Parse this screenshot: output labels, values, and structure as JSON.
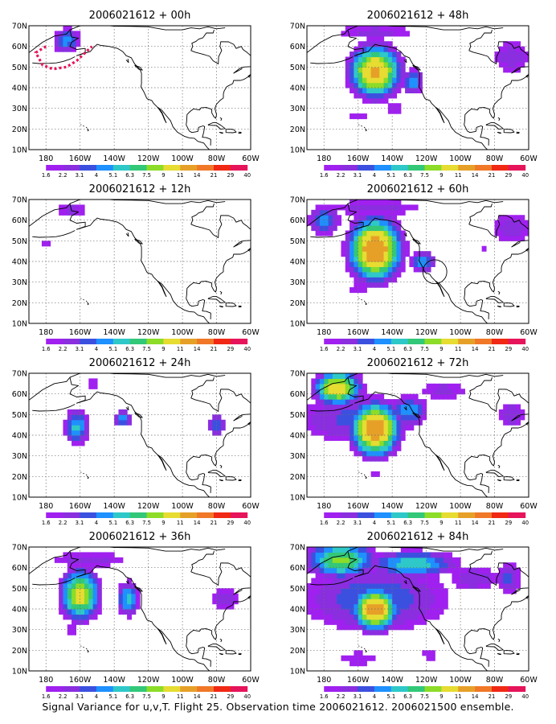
{
  "figure": {
    "caption": "Signal Variance for u,v,T. Flight 25. Observation time 2006021612. 2006021500 ensemble."
  },
  "colors": {
    "levels": [
      "#a020f0",
      "#8a2ee0",
      "#3c50e0",
      "#1e90ff",
      "#2ec8c8",
      "#32c878",
      "#8cdc28",
      "#e6dc32",
      "#e6a028",
      "#f07828",
      "#f02814",
      "#e6145a"
    ],
    "land_outline": "#000000",
    "grid": "#6e6e6e",
    "track": "#e6145a"
  },
  "chart_data": [
    {
      "type": "heatmap",
      "title": "2006021612 + 00h",
      "lead_hours": 0,
      "x_ticks": [
        "180",
        "160W",
        "140W",
        "120W",
        "100W",
        "80W",
        "60W"
      ],
      "y_ticks": [
        "10N",
        "20N",
        "30N",
        "40N",
        "50N",
        "60N",
        "70N"
      ],
      "xlim": [
        -190,
        -60
      ],
      "ylim": [
        10,
        70
      ],
      "colorbar": {
        "levels": [
          "1.6",
          "2.2",
          "3.1",
          "4",
          "5.1",
          "6.3",
          "7.5",
          "9",
          "11",
          "14",
          "21",
          "29",
          "40"
        ]
      },
      "features": [
        {
          "lon": -168,
          "lat": 63,
          "peak": 4.5,
          "rlon": 8,
          "rlat": 6
        }
      ],
      "flight_track": [
        [
          -180,
          60
        ],
        [
          -186,
          57
        ],
        [
          -182,
          51
        ],
        [
          -176,
          49
        ],
        [
          -168,
          50
        ],
        [
          -162,
          53
        ],
        [
          -157,
          57
        ],
        [
          -153,
          60
        ]
      ]
    },
    {
      "type": "heatmap",
      "title": "2006021612 + 48h",
      "lead_hours": 48,
      "x_ticks": [
        "180",
        "160W",
        "140W",
        "120W",
        "100W",
        "80W",
        "60W"
      ],
      "y_ticks": [
        "10N",
        "20N",
        "30N",
        "40N",
        "50N",
        "60N",
        "70N"
      ],
      "xlim": [
        -190,
        -60
      ],
      "ylim": [
        10,
        70
      ],
      "colorbar": {
        "levels": [
          "1.6",
          "2.2",
          "3.1",
          "4",
          "5.1",
          "6.3",
          "7.5",
          "9",
          "11",
          "14",
          "21",
          "29",
          "40"
        ]
      },
      "features": [
        {
          "lon": -150,
          "lat": 48,
          "peak": 12,
          "rlon": 13,
          "rlat": 11
        },
        {
          "lon": -128,
          "lat": 43,
          "peak": 5,
          "rlon": 6,
          "rlat": 6
        },
        {
          "lon": -150,
          "lat": 67,
          "peak": 2.5,
          "rlon": 30,
          "rlat": 5
        },
        {
          "lon": -70,
          "lat": 55,
          "peak": 2.8,
          "rlon": 14,
          "rlat": 9
        },
        {
          "lon": -160,
          "lat": 26,
          "peak": 1.9,
          "rlon": 10,
          "rlat": 4
        },
        {
          "lon": -138,
          "lat": 30,
          "peak": 2.0,
          "rlon": 8,
          "rlat": 6
        }
      ]
    },
    {
      "type": "heatmap",
      "title": "2006021612 + 12h",
      "lead_hours": 12,
      "x_ticks": [
        "180",
        "160W",
        "140W",
        "120W",
        "100W",
        "80W",
        "60W"
      ],
      "y_ticks": [
        "10N",
        "20N",
        "30N",
        "40N",
        "50N",
        "60N",
        "70N"
      ],
      "xlim": [
        -190,
        -60
      ],
      "ylim": [
        10,
        70
      ],
      "colorbar": {
        "levels": [
          "1.6",
          "2.2",
          "3.1",
          "4",
          "5.1",
          "6.3",
          "7.5",
          "9",
          "11",
          "14",
          "21",
          "29",
          "40"
        ]
      },
      "features": [
        {
          "lon": -165,
          "lat": 65,
          "peak": 2.5,
          "rlon": 14,
          "rlat": 5
        },
        {
          "lon": -180,
          "lat": 49,
          "peak": 2.3,
          "rlon": 5,
          "rlat": 4
        },
        {
          "lon": -135,
          "lat": 50,
          "peak": 2.0,
          "rlon": 3,
          "rlat": 2
        },
        {
          "lon": -160,
          "lat": 35,
          "peak": 2.0,
          "rlon": 3,
          "rlat": 3
        }
      ]
    },
    {
      "type": "heatmap",
      "title": "2006021612 + 60h",
      "lead_hours": 60,
      "x_ticks": [
        "180",
        "160W",
        "140W",
        "120W",
        "100W",
        "80W",
        "60W"
      ],
      "y_ticks": [
        "10N",
        "20N",
        "30N",
        "40N",
        "50N",
        "60N",
        "70N"
      ],
      "xlim": [
        -190,
        -60
      ],
      "ylim": [
        10,
        70
      ],
      "colorbar": {
        "levels": [
          "1.6",
          "2.2",
          "3.1",
          "4",
          "5.1",
          "6.3",
          "7.5",
          "9",
          "11",
          "14",
          "21",
          "29",
          "40"
        ]
      },
      "features": [
        {
          "lon": -150,
          "lat": 46,
          "peak": 14,
          "rlon": 13,
          "rlat": 13
        },
        {
          "lon": -180,
          "lat": 60,
          "peak": 4.5,
          "rlon": 10,
          "rlat": 7
        },
        {
          "lon": -122,
          "lat": 40,
          "peak": 5,
          "rlon": 7,
          "rlat": 5
        },
        {
          "lon": -150,
          "lat": 66,
          "peak": 2.6,
          "rlon": 35,
          "rlat": 5
        },
        {
          "lon": -70,
          "lat": 56,
          "peak": 2.8,
          "rlon": 14,
          "rlat": 9
        },
        {
          "lon": -160,
          "lat": 27,
          "peak": 2.0,
          "rlon": 10,
          "rlat": 4
        },
        {
          "lon": -86,
          "lat": 47,
          "peak": 2.1,
          "rlon": 4,
          "rlat": 3
        }
      ],
      "target_circle": {
        "lon": -115,
        "lat": 35,
        "radius_deg": 7
      }
    },
    {
      "type": "heatmap",
      "title": "2006021612 + 24h",
      "lead_hours": 24,
      "x_ticks": [
        "180",
        "160W",
        "140W",
        "120W",
        "100W",
        "80W",
        "60W"
      ],
      "y_ticks": [
        "10N",
        "20N",
        "30N",
        "40N",
        "50N",
        "60N",
        "70N"
      ],
      "xlim": [
        -190,
        -60
      ],
      "ylim": [
        10,
        70
      ],
      "colorbar": {
        "levels": [
          "1.6",
          "2.2",
          "3.1",
          "4",
          "5.1",
          "6.3",
          "7.5",
          "9",
          "11",
          "14",
          "21",
          "29",
          "40"
        ]
      },
      "features": [
        {
          "lon": -162,
          "lat": 44,
          "peak": 5.5,
          "rlon": 7,
          "rlat": 8
        },
        {
          "lon": -135,
          "lat": 48,
          "peak": 5,
          "rlon": 5,
          "rlat": 4
        },
        {
          "lon": -80,
          "lat": 45,
          "peak": 4.5,
          "rlon": 5,
          "rlat": 5
        },
        {
          "lon": -152,
          "lat": 65,
          "peak": 2.0,
          "rlon": 10,
          "rlat": 3
        },
        {
          "lon": -165,
          "lat": 35,
          "peak": 2.0,
          "rlon": 3,
          "rlat": 3
        }
      ]
    },
    {
      "type": "heatmap",
      "title": "2006021612 + 72h",
      "lead_hours": 72,
      "x_ticks": [
        "180",
        "160W",
        "140W",
        "120W",
        "100W",
        "80W",
        "60W"
      ],
      "y_ticks": [
        "10N",
        "20N",
        "30N",
        "40N",
        "50N",
        "60N",
        "70N"
      ],
      "xlim": [
        -190,
        -60
      ],
      "ylim": [
        10,
        70
      ],
      "colorbar": {
        "levels": [
          "1.6",
          "2.2",
          "3.1",
          "4",
          "5.1",
          "6.3",
          "7.5",
          "9",
          "11",
          "14",
          "21",
          "29",
          "40"
        ]
      },
      "features": [
        {
          "lon": -150,
          "lat": 43,
          "peak": 14,
          "rlon": 12,
          "rlat": 11
        },
        {
          "lon": -172,
          "lat": 63,
          "peak": 11,
          "rlon": 12,
          "rlat": 7
        },
        {
          "lon": -130,
          "lat": 52,
          "peak": 5,
          "rlon": 10,
          "rlat": 7
        },
        {
          "lon": -160,
          "lat": 48,
          "peak": 3.5,
          "rlon": 40,
          "rlat": 13
        },
        {
          "lon": -110,
          "lat": 62,
          "peak": 2.5,
          "rlon": 18,
          "rlat": 6
        },
        {
          "lon": -70,
          "lat": 50,
          "peak": 2.8,
          "rlon": 10,
          "rlat": 8
        },
        {
          "lon": -150,
          "lat": 21,
          "peak": 2.0,
          "rlon": 6,
          "rlat": 2
        }
      ]
    },
    {
      "type": "heatmap",
      "title": "2006021612 + 36h",
      "lead_hours": 36,
      "x_ticks": [
        "180",
        "160W",
        "140W",
        "120W",
        "100W",
        "80W",
        "60W"
      ],
      "y_ticks": [
        "10N",
        "20N",
        "30N",
        "40N",
        "50N",
        "60N",
        "70N"
      ],
      "xlim": [
        -190,
        -60
      ],
      "ylim": [
        10,
        70
      ],
      "colorbar": {
        "levels": [
          "1.6",
          "2.2",
          "3.1",
          "4",
          "5.1",
          "6.3",
          "7.5",
          "9",
          "11",
          "14",
          "21",
          "29",
          "40"
        ]
      },
      "features": [
        {
          "lon": -160,
          "lat": 47,
          "peak": 10,
          "rlon": 10,
          "rlat": 11
        },
        {
          "lon": -132,
          "lat": 45,
          "peak": 5.5,
          "rlon": 6,
          "rlat": 8
        },
        {
          "lon": -155,
          "lat": 64,
          "peak": 2.6,
          "rlon": 30,
          "rlat": 5
        },
        {
          "lon": -75,
          "lat": 45,
          "peak": 2.7,
          "rlon": 11,
          "rlat": 7
        },
        {
          "lon": -165,
          "lat": 30,
          "peak": 2.0,
          "rlon": 5,
          "rlat": 6
        }
      ]
    },
    {
      "type": "heatmap",
      "title": "2006021612 + 84h",
      "lead_hours": 84,
      "x_ticks": [
        "180",
        "160W",
        "140W",
        "120W",
        "100W",
        "80W",
        "60W"
      ],
      "y_ticks": [
        "10N",
        "20N",
        "30N",
        "40N",
        "50N",
        "60N",
        "70N"
      ],
      "xlim": [
        -190,
        -60
      ],
      "ylim": [
        10,
        70
      ],
      "colorbar": {
        "levels": [
          "1.6",
          "2.2",
          "3.1",
          "4",
          "5.1",
          "6.3",
          "7.5",
          "9",
          "11",
          "14",
          "21",
          "29",
          "40"
        ]
      },
      "features": [
        {
          "lon": -150,
          "lat": 40,
          "peak": 13,
          "rlon": 11,
          "rlat": 9
        },
        {
          "lon": -170,
          "lat": 64,
          "peak": 8,
          "rlon": 18,
          "rlat": 8
        },
        {
          "lon": -128,
          "lat": 62,
          "peak": 6,
          "rlon": 25,
          "rlat": 6
        },
        {
          "lon": -150,
          "lat": 45,
          "peak": 4,
          "rlon": 45,
          "rlat": 17
        },
        {
          "lon": -92,
          "lat": 55,
          "peak": 2.8,
          "rlon": 18,
          "rlat": 8
        },
        {
          "lon": -72,
          "lat": 55,
          "peak": 3.5,
          "rlon": 8,
          "rlat": 8
        },
        {
          "lon": -160,
          "lat": 16,
          "peak": 2.2,
          "rlon": 18,
          "rlat": 5
        },
        {
          "lon": -118,
          "lat": 18,
          "peak": 2.0,
          "rlon": 8,
          "rlat": 5
        }
      ]
    }
  ]
}
